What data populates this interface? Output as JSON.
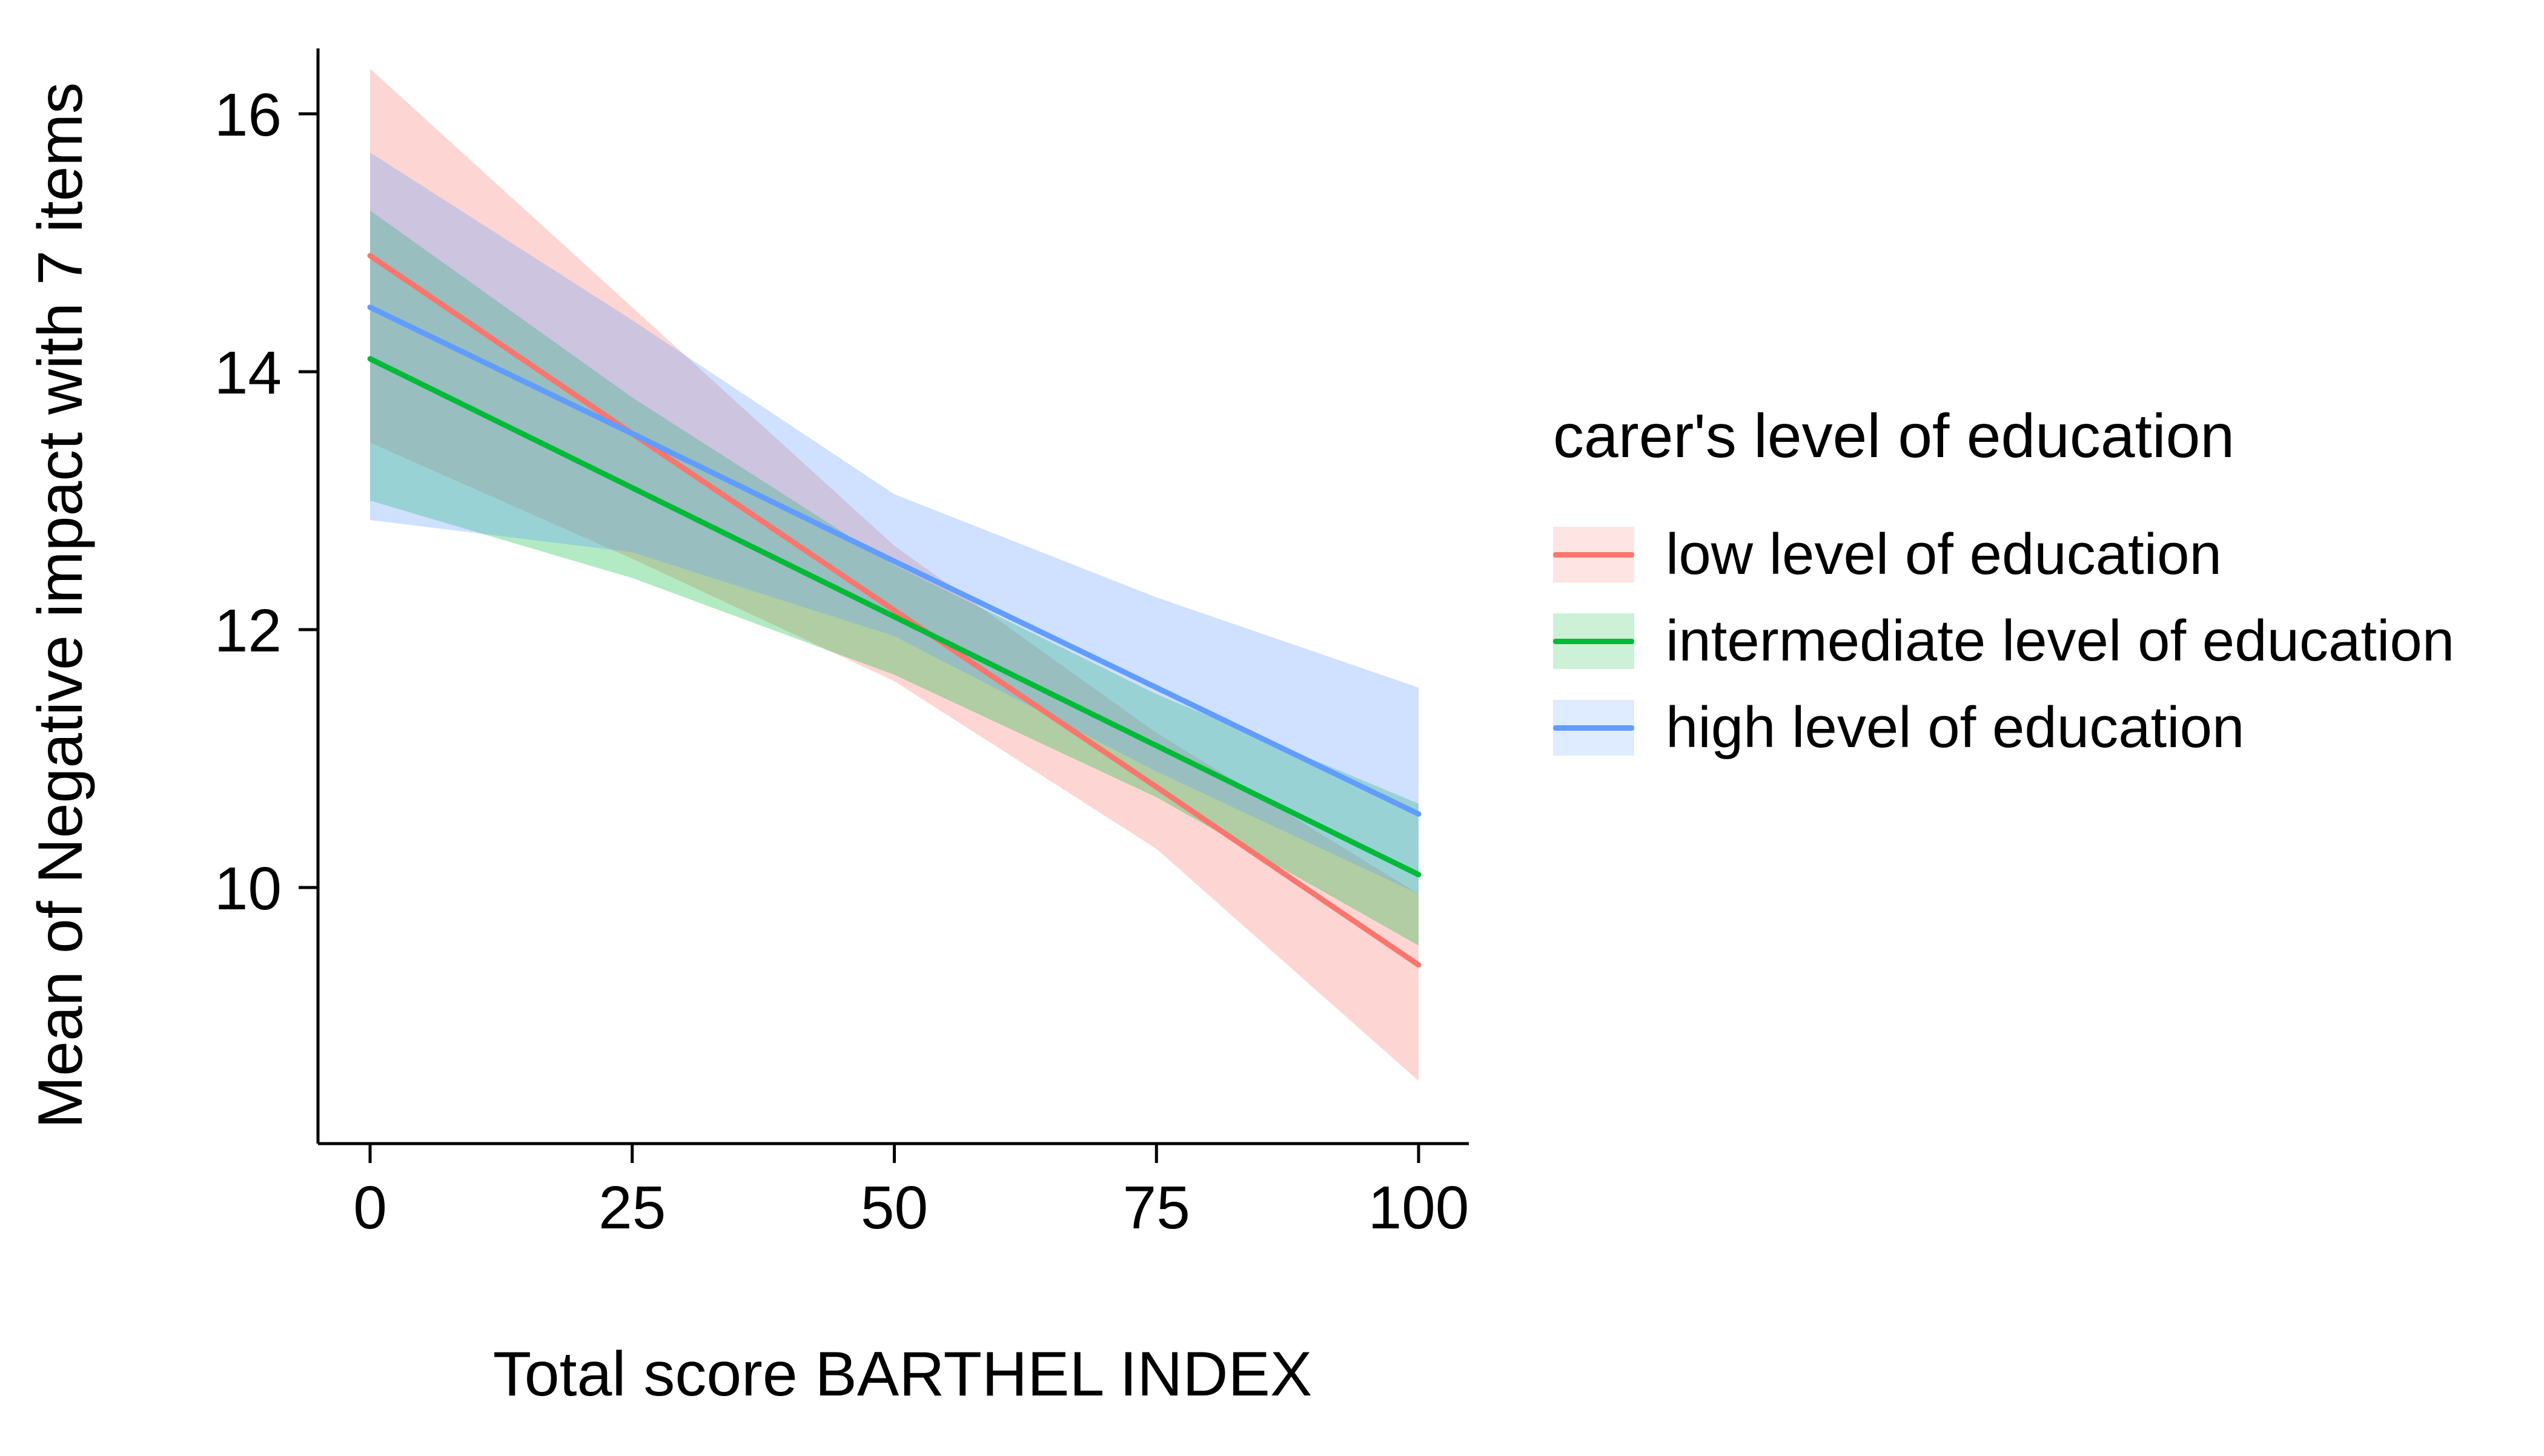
{
  "figure": {
    "background": "#ffffff",
    "text_color": "#000000",
    "axis_color": "#000000"
  },
  "chart_data": {
    "type": "line",
    "title": "",
    "xlabel": "Total score BARTHEL INDEX",
    "ylabel": "Mean of Negative impact with 7 items",
    "x_tick_values": [
      0,
      25,
      50,
      75,
      100
    ],
    "x_tick_labels": [
      "0",
      "25",
      "50",
      "75",
      "100"
    ],
    "y_tick_values": [
      10,
      12,
      14,
      16
    ],
    "y_tick_labels": [
      "10",
      "12",
      "14",
      "16"
    ],
    "xlim": [
      0,
      100
    ],
    "ylim": [
      8.2,
      16.6
    ],
    "grid": false,
    "ribbon_opacity": 0.3,
    "legend": {
      "title": "carer's level of education",
      "position": "right"
    },
    "x": [
      0,
      25,
      50,
      75,
      100
    ],
    "series": [
      {
        "name": "low level of education",
        "color": "#F8766D",
        "values": [
          14.9,
          13.52,
          12.15,
          10.78,
          9.4
        ],
        "ci_upper": [
          16.35,
          14.5,
          12.65,
          11.2,
          9.95
        ],
        "ci_lower": [
          13.45,
          12.55,
          11.6,
          10.3,
          8.5
        ]
      },
      {
        "name": "intermediate level of education",
        "color": "#00BA38",
        "values": [
          14.1,
          13.1,
          12.1,
          11.1,
          10.1
        ],
        "ci_upper": [
          15.25,
          13.8,
          12.5,
          11.5,
          10.65
        ],
        "ci_lower": [
          13.0,
          12.4,
          11.65,
          10.7,
          9.55
        ]
      },
      {
        "name": "high level of education",
        "color": "#619CFF",
        "values": [
          14.5,
          13.52,
          12.53,
          11.55,
          10.57
        ],
        "ci_upper": [
          15.7,
          14.4,
          13.05,
          12.25,
          11.55
        ],
        "ci_lower": [
          12.85,
          12.6,
          11.95,
          10.9,
          9.95
        ]
      }
    ]
  }
}
